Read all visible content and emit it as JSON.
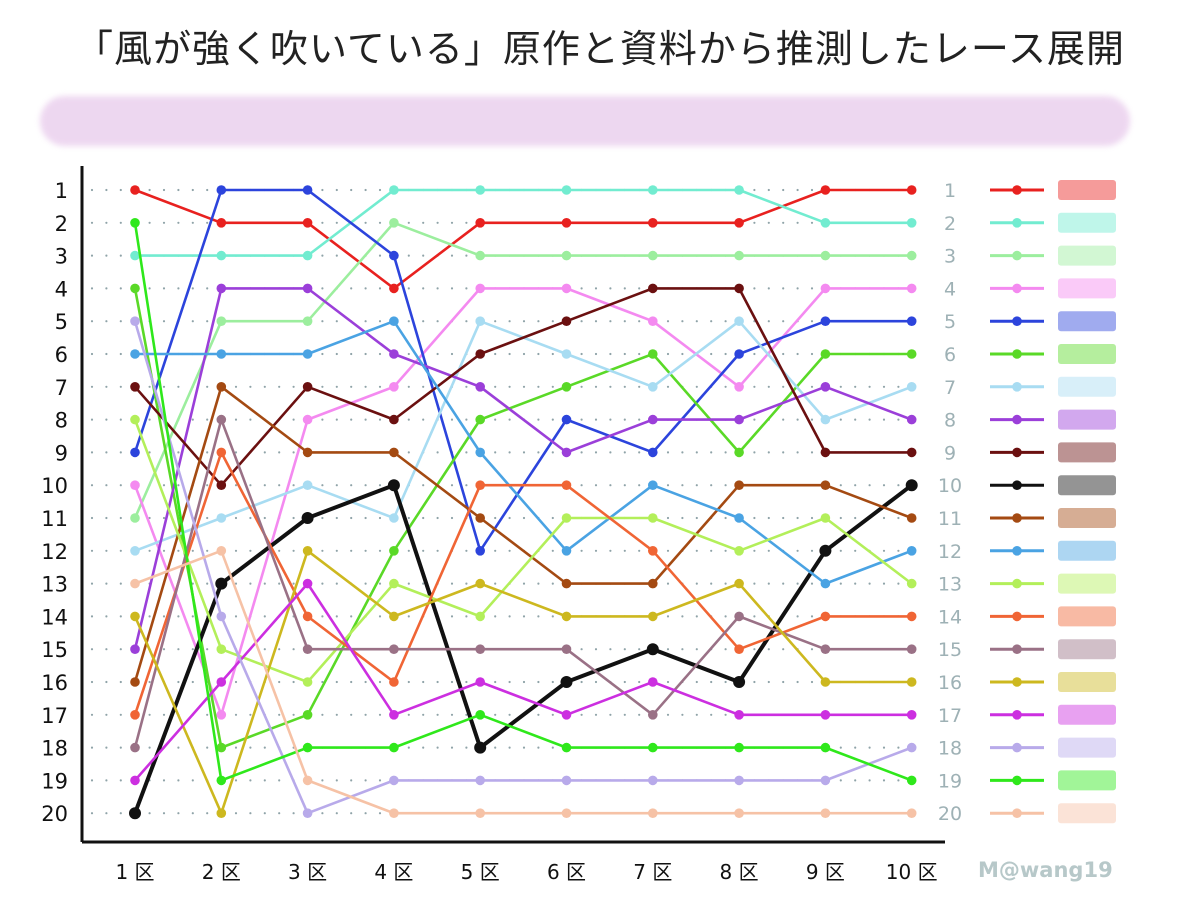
{
  "title": "「風が強く吹いている」原作と資料から推測したレース展開",
  "credit": "M@wang19",
  "chart_data": {
    "type": "line",
    "y_inverted": true,
    "ylim": [
      1,
      20
    ],
    "categories": [
      "1 区",
      "2 区",
      "3 区",
      "4 区",
      "5 区",
      "6 区",
      "7 区",
      "8 区",
      "9 区",
      "10 区"
    ],
    "y_ticks": [
      1,
      2,
      3,
      4,
      5,
      6,
      7,
      8,
      9,
      10,
      11,
      12,
      13,
      14,
      15,
      16,
      17,
      18,
      19,
      20
    ],
    "grid": "dotted",
    "legend_position": "right",
    "series": [
      {
        "color": "#e8211f",
        "values": [
          1,
          2,
          2,
          4,
          2,
          2,
          2,
          2,
          1,
          1
        ]
      },
      {
        "color": "#72ecd0",
        "values": [
          3,
          3,
          3,
          1,
          1,
          1,
          1,
          1,
          2,
          2
        ]
      },
      {
        "color": "#9cee9e",
        "values": [
          11,
          5,
          5,
          2,
          3,
          3,
          3,
          3,
          3,
          3
        ]
      },
      {
        "color": "#f48af0",
        "values": [
          10,
          17,
          8,
          7,
          4,
          4,
          5,
          7,
          4,
          4
        ]
      },
      {
        "color": "#2c44dc",
        "values": [
          9,
          1,
          1,
          3,
          12,
          8,
          9,
          6,
          5,
          5
        ]
      },
      {
        "color": "#5ad927",
        "values": [
          4,
          18,
          17,
          12,
          8,
          7,
          6,
          9,
          6,
          6
        ]
      },
      {
        "color": "#a8dcf2",
        "values": [
          12,
          11,
          10,
          11,
          5,
          6,
          7,
          5,
          8,
          7
        ]
      },
      {
        "color": "#9b3fd9",
        "values": [
          15,
          4,
          4,
          6,
          7,
          9,
          8,
          8,
          7,
          8
        ]
      },
      {
        "color": "#6b1010",
        "values": [
          7,
          10,
          7,
          8,
          6,
          5,
          4,
          4,
          9,
          9
        ]
      },
      {
        "color": "#111111",
        "values": [
          20,
          13,
          11,
          10,
          18,
          16,
          15,
          16,
          12,
          10
        ]
      },
      {
        "color": "#a44a12",
        "values": [
          16,
          7,
          9,
          9,
          11,
          13,
          13,
          10,
          10,
          11
        ]
      },
      {
        "color": "#4aa3e3",
        "values": [
          6,
          6,
          6,
          5,
          9,
          12,
          10,
          11,
          13,
          12
        ]
      },
      {
        "color": "#b3ef5a",
        "values": [
          8,
          15,
          16,
          13,
          14,
          11,
          11,
          12,
          11,
          13
        ]
      },
      {
        "color": "#f06535",
        "values": [
          17,
          9,
          14,
          16,
          10,
          10,
          12,
          15,
          14,
          14
        ]
      },
      {
        "color": "#9a7186",
        "values": [
          18,
          8,
          15,
          15,
          15,
          15,
          17,
          14,
          15,
          15
        ]
      },
      {
        "color": "#cdb81f",
        "values": [
          14,
          20,
          12,
          14,
          13,
          14,
          14,
          13,
          16,
          16
        ]
      },
      {
        "color": "#cc2fe0",
        "values": [
          19,
          16,
          13,
          17,
          16,
          17,
          16,
          17,
          17,
          17
        ]
      },
      {
        "color": "#b8aaea",
        "values": [
          5,
          14,
          20,
          19,
          19,
          19,
          19,
          19,
          19,
          18
        ]
      },
      {
        "color": "#2fe81b",
        "values": [
          2,
          19,
          18,
          18,
          17,
          18,
          18,
          18,
          18,
          19
        ]
      },
      {
        "color": "#f6c2a6",
        "values": [
          13,
          12,
          19,
          20,
          20,
          20,
          20,
          20,
          20,
          20
        ]
      }
    ]
  }
}
